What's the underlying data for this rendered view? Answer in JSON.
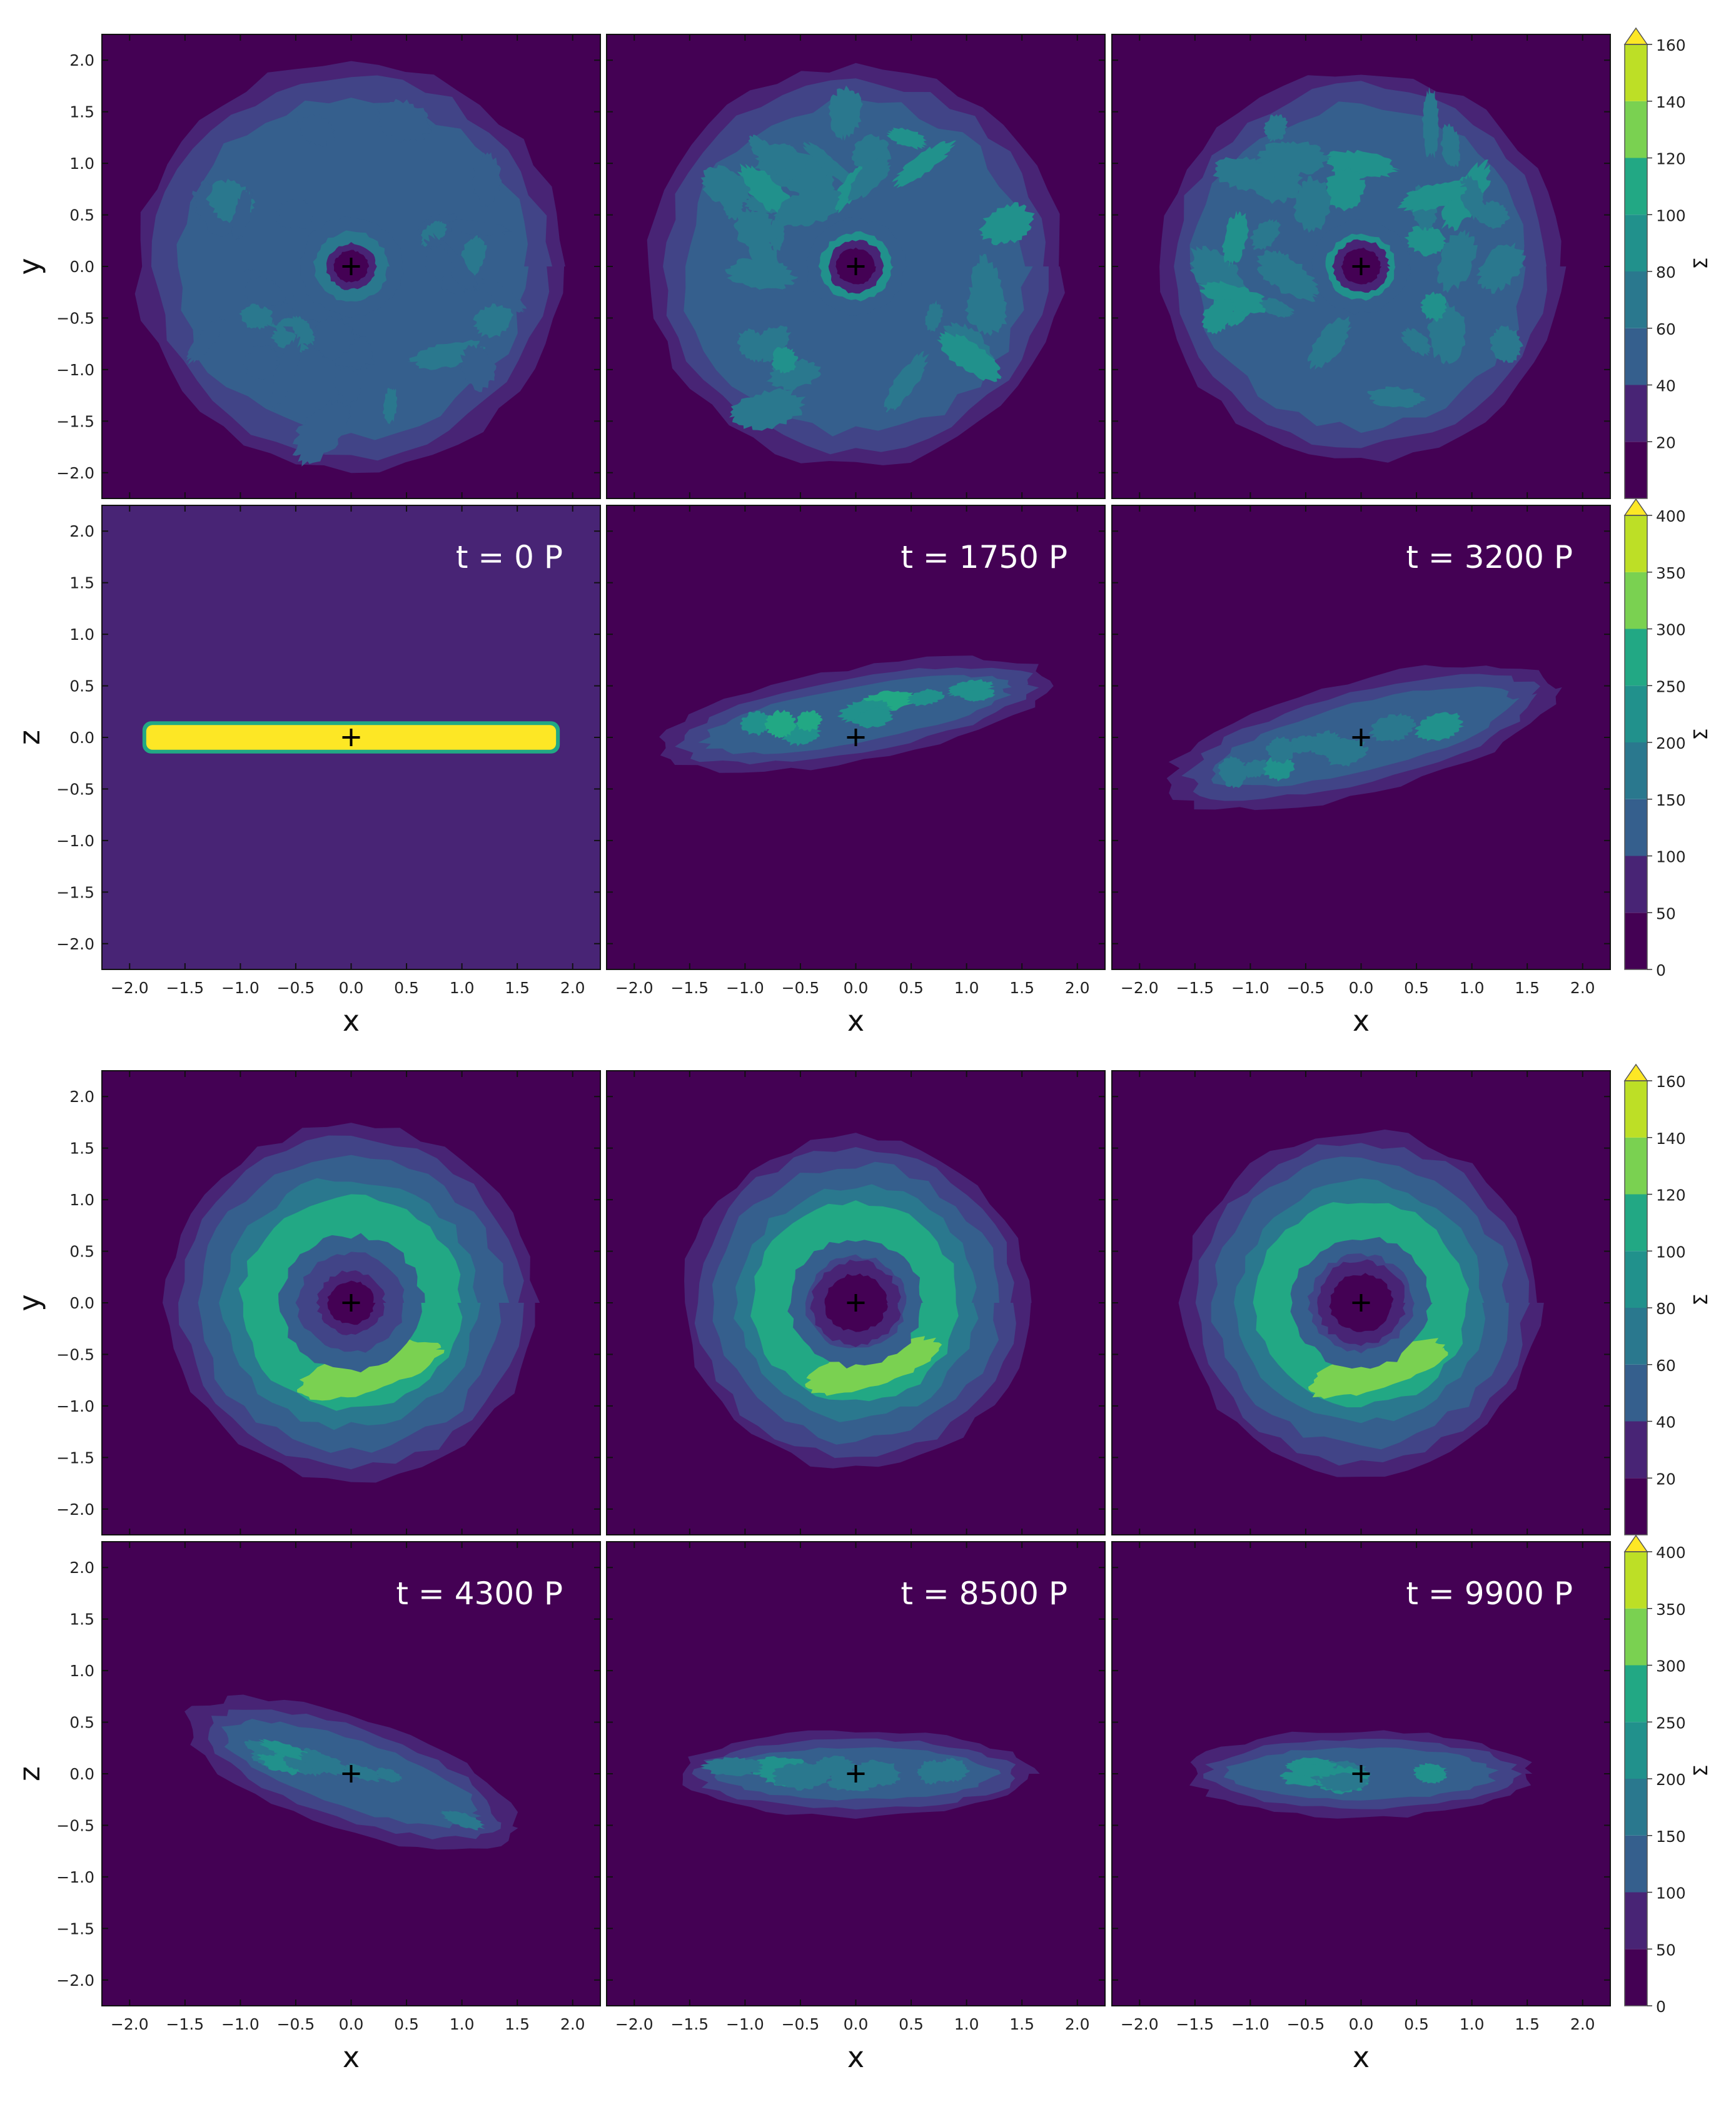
{
  "chart_data": {
    "type": "heatmap",
    "title": "",
    "subtitle": "",
    "description_note": "",
    "colors": [
      "#440154",
      "#482475",
      "#414487",
      "#355f8d",
      "#2a788e",
      "#21918c",
      "#22a884",
      "#44bf70",
      "#7ad151",
      "#bddf26",
      "#fde725"
    ],
    "xlabel": "x",
    "xticks": [
      "−2.0",
      "−1.5",
      "−1.0",
      "−0.5",
      "0.0",
      "0.5",
      "1.0",
      "1.5",
      "2.0"
    ],
    "yticks": [
      "2.0",
      "1.5",
      "1.0",
      "0.5",
      "0.0",
      "−0.5",
      "−1.0",
      "−1.5",
      "−2.0"
    ],
    "xlim": [
      -2.25,
      2.25
    ],
    "ylim": [
      -2.25,
      2.25
    ],
    "colorbars": {
      "top_view": {
        "label": "Σ",
        "levels": [
          0,
          20,
          40,
          60,
          80,
          100,
          120,
          140,
          160
        ],
        "tick_labels": [
          "20",
          "40",
          "60",
          "80",
          "100",
          "120",
          "140",
          "160"
        ],
        "extend": "max"
      },
      "side_view": {
        "label": "Σ",
        "levels": [
          0,
          50,
          100,
          150,
          200,
          250,
          300,
          350,
          400
        ],
        "tick_labels": [
          "0",
          "50",
          "100",
          "150",
          "200",
          "250",
          "300",
          "350",
          "400"
        ],
        "extend": "max"
      }
    },
    "groups": [
      {
        "top_ylabel": "y",
        "side_ylabel": "z",
        "panels": [
          {
            "time_label": "t = 0 P",
            "top": {
              "kind": "disk",
              "outer_radius": 1.85,
              "inner_hole": 0.22,
              "ring_level": 3,
              "peak_level": 4
            },
            "side": {
              "kind": "thin_slab",
              "half_length": 1.85,
              "half_thickness": 0.12,
              "level": 10,
              "background_level": 1
            }
          },
          {
            "time_label": "t = 1750 P",
            "top": {
              "kind": "disk",
              "outer_radius": 1.8,
              "inner_hole": 0.25,
              "ring_level": 4,
              "peak_level": 5
            },
            "side": {
              "kind": "warped",
              "half_length": 1.8,
              "tilt_deg": 10,
              "level": 4,
              "peak_level": 5,
              "background_level": 0
            }
          },
          {
            "time_label": "t = 3200 P",
            "top": {
              "kind": "disk",
              "outer_radius": 1.75,
              "inner_hole": 0.25,
              "ring_level": 4,
              "peak_level": 5
            },
            "side": {
              "kind": "tilted",
              "half_length": 1.8,
              "tilt_deg": 14,
              "level": 3,
              "peak_level": 4,
              "background_level": 0
            }
          }
        ]
      },
      {
        "top_ylabel": "y",
        "side_ylabel": "z",
        "panels": [
          {
            "time_label": "t = 4300 P",
            "top": {
              "kind": "ring",
              "outer_radius": 1.6,
              "inner_hole": 0.3,
              "ring_level": 5,
              "peak_level": 7
            },
            "side": {
              "kind": "tilted",
              "half_length": 1.55,
              "tilt_deg": -18,
              "level": 3,
              "peak_level": 4,
              "background_level": 0
            }
          },
          {
            "time_label": "t = 8500 P",
            "top": {
              "kind": "ring",
              "outer_radius": 1.5,
              "inner_hole": 0.4,
              "ring_level": 6,
              "peak_level": 7
            },
            "side": {
              "kind": "slab",
              "half_length": 1.6,
              "tilt_deg": 0,
              "level": 3,
              "peak_level": 4,
              "background_level": 0
            }
          },
          {
            "time_label": "t = 9900 P",
            "top": {
              "kind": "ring",
              "outer_radius": 1.55,
              "inner_hole": 0.4,
              "ring_level": 6,
              "peak_level": 7
            },
            "side": {
              "kind": "slab",
              "half_length": 1.55,
              "tilt_deg": 0,
              "level": 3,
              "peak_level": 4,
              "background_level": 0
            }
          }
        ]
      }
    ]
  }
}
